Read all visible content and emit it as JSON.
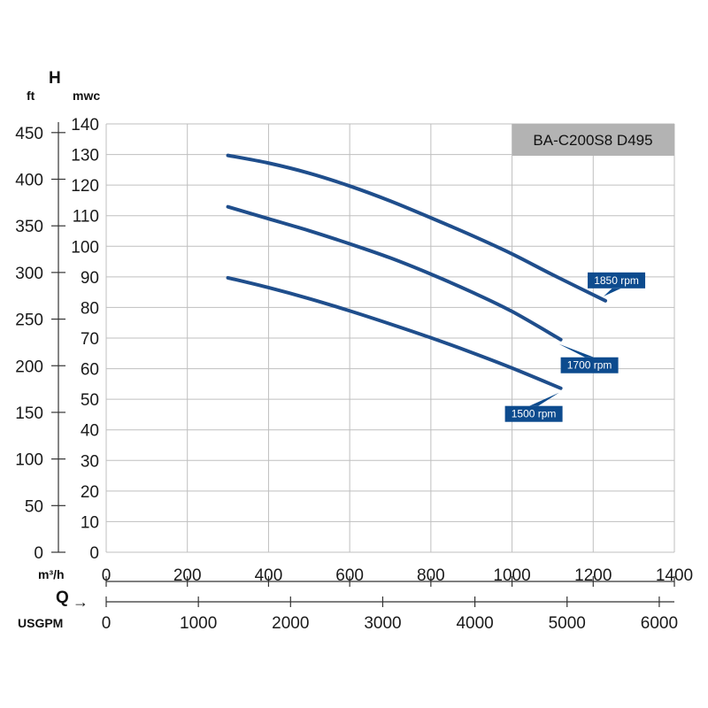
{
  "chart_data": {
    "type": "line",
    "title": "BA-C200S8 D495",
    "left_axis_symbol": "H",
    "y_unit_mwc": "mwc",
    "y_unit_ft": "ft",
    "x_unit_m3h": "m³/h",
    "x_unit_usgpm": "USGPM",
    "flow_symbol": "Q",
    "flow_arrow": "→",
    "xlim": [
      0,
      1400
    ],
    "ylim": [
      0,
      140
    ],
    "x_ticks_m3h": [
      0,
      200,
      400,
      600,
      800,
      1000,
      1200,
      1400
    ],
    "y_ticks_mwc": [
      0,
      10,
      20,
      30,
      40,
      50,
      60,
      70,
      80,
      90,
      100,
      110,
      120,
      130,
      140
    ],
    "y_ticks_ft": [
      0,
      50,
      100,
      150,
      200,
      250,
      300,
      350,
      400,
      450
    ],
    "x_ticks_usgpm": [
      0,
      1000,
      2000,
      3000,
      4000,
      5000,
      6000
    ],
    "grid": true,
    "colors": {
      "curve": "#1f4e8c",
      "label_bg": "#0d4b8e",
      "title_bg": "#b3b3b3",
      "grid": "#bfbfbf"
    },
    "series": [
      {
        "name": "1850 rpm",
        "x": [
          300,
          400,
          500,
          600,
          700,
          800,
          900,
          1000,
          1100,
          1230
        ],
        "y": [
          129.7,
          127.2,
          123.9,
          119.7,
          114.8,
          109.3,
          103.6,
          97.5,
          90.7,
          82.2
        ]
      },
      {
        "name": "1700 rpm",
        "x": [
          300,
          400,
          500,
          600,
          700,
          800,
          900,
          1000,
          1120
        ],
        "y": [
          112.9,
          109.0,
          105.1,
          100.8,
          96.2,
          90.9,
          85.1,
          78.7,
          69.5
        ]
      },
      {
        "name": "1500 rpm",
        "x": [
          300,
          400,
          500,
          600,
          700,
          800,
          900,
          1000,
          1120
        ],
        "y": [
          89.7,
          86.5,
          82.9,
          78.9,
          74.6,
          70.1,
          65.3,
          60.2,
          53.6
        ]
      }
    ]
  }
}
